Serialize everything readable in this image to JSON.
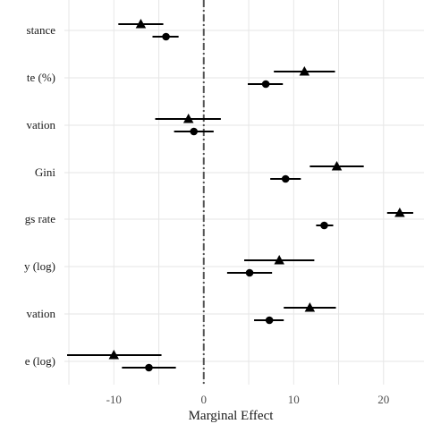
{
  "chart_data": {
    "type": "scatter",
    "subtype": "coefficient-plot",
    "xlabel": "Marginal Effect",
    "ylabel": "",
    "xlim": [
      -15.5,
      24.5
    ],
    "x_ticks": [
      -10,
      0,
      10,
      20
    ],
    "x_tick_labels": [
      "-10",
      "0",
      "10",
      "20"
    ],
    "reference_line": {
      "x": 0,
      "style": "dot-dash",
      "color": "#555555"
    },
    "grid": true,
    "legend": "none",
    "categories": [
      "stance",
      "te (%)",
      "vation",
      "Gini",
      "gs rate",
      "y (log)",
      "vation",
      "e (log)"
    ],
    "series": [
      {
        "marker": "triangle",
        "estimates": [
          -7.0,
          11.2,
          -1.7,
          14.8,
          21.8,
          8.4,
          11.8,
          -10.0
        ],
        "lower": [
          -9.5,
          7.8,
          -5.4,
          11.8,
          20.4,
          4.5,
          8.9,
          -15.2
        ],
        "upper": [
          -4.5,
          14.6,
          1.9,
          17.8,
          23.3,
          12.3,
          14.7,
          -4.7
        ]
      },
      {
        "marker": "circle",
        "estimates": [
          -4.2,
          6.9,
          -1.1,
          9.1,
          13.4,
          5.1,
          7.3,
          -6.1
        ],
        "lower": [
          -5.7,
          4.9,
          -3.3,
          7.4,
          12.5,
          2.6,
          5.6,
          -9.1
        ],
        "upper": [
          -2.8,
          8.8,
          1.1,
          10.8,
          14.4,
          7.6,
          8.9,
          -3.1
        ]
      }
    ]
  }
}
